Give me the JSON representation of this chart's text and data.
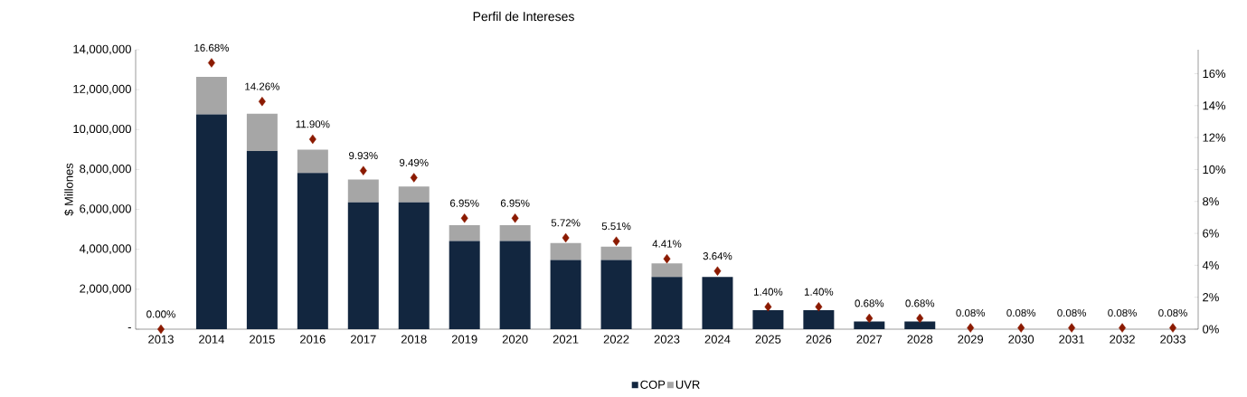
{
  "chart_data": {
    "type": "bar",
    "title": "Perfil de Intereses",
    "ylabel": "$ Millones",
    "stacked": true,
    "legend": "bottom",
    "marker": "diamond",
    "categories": [
      "2013",
      "2014",
      "2015",
      "2016",
      "2017",
      "2018",
      "2019",
      "2020",
      "2021",
      "2022",
      "2023",
      "2024",
      "2025",
      "2026",
      "2027",
      "2028",
      "2029",
      "2030",
      "2031",
      "2032",
      "2033"
    ],
    "series": [
      {
        "name": "COP",
        "color": "#12263f",
        "values": [
          0,
          10760000,
          8920000,
          7830000,
          6350000,
          6350000,
          4420000,
          4420000,
          3470000,
          3470000,
          2620000,
          2620000,
          950000,
          950000,
          380000,
          380000,
          0,
          0,
          0,
          0,
          0
        ]
      },
      {
        "name": "UVR",
        "color": "#a6a6a6",
        "values": [
          0,
          1880000,
          1880000,
          1160000,
          1150000,
          800000,
          790000,
          790000,
          850000,
          670000,
          680000,
          0,
          0,
          0,
          0,
          0,
          0,
          0,
          0,
          0,
          0
        ]
      },
      {
        "type": "scatter",
        "axis": "y2",
        "color": "#8b1a00",
        "values": [
          0,
          16.68,
          14.26,
          11.9,
          9.93,
          9.49,
          6.95,
          6.95,
          5.72,
          5.51,
          4.41,
          3.64,
          1.4,
          1.4,
          0.68,
          0.68,
          0.08,
          0.08,
          0.08,
          0.08,
          0.08
        ],
        "value_labels": [
          "0.00%",
          "16.68%",
          "14.26%",
          "11.90%",
          "9.93%",
          "9.49%",
          "6.95%",
          "6.95%",
          "5.72%",
          "5.51%",
          "4.41%",
          "3.64%",
          "1.40%",
          "1.40%",
          "0.68%",
          "0.68%",
          "0.08%",
          "0.08%",
          "0.08%",
          "0.08%",
          "0.08%"
        ]
      }
    ],
    "ylim": [
      0,
      14000000
    ],
    "yticks": [
      {
        "value": 0,
        "label": "-"
      },
      {
        "value": 2000000,
        "label": "2,000,000"
      },
      {
        "value": 4000000,
        "label": "4,000,000"
      },
      {
        "value": 6000000,
        "label": "6,000,000"
      },
      {
        "value": 8000000,
        "label": "8,000,000"
      },
      {
        "value": 10000000,
        "label": "10,000,000"
      },
      {
        "value": 12000000,
        "label": "12,000,000"
      },
      {
        "value": 14000000,
        "label": "14,000,000"
      }
    ],
    "y2lim": [
      0,
      17.5
    ],
    "y2ticks": [
      {
        "value": 0,
        "label": "0%"
      },
      {
        "value": 2,
        "label": "2%"
      },
      {
        "value": 4,
        "label": "4%"
      },
      {
        "value": 6,
        "label": "6%"
      },
      {
        "value": 8,
        "label": "8%"
      },
      {
        "value": 10,
        "label": "10%"
      },
      {
        "value": 12,
        "label": "12%"
      },
      {
        "value": 14,
        "label": "14%"
      },
      {
        "value": 16,
        "label": "16%"
      }
    ]
  }
}
